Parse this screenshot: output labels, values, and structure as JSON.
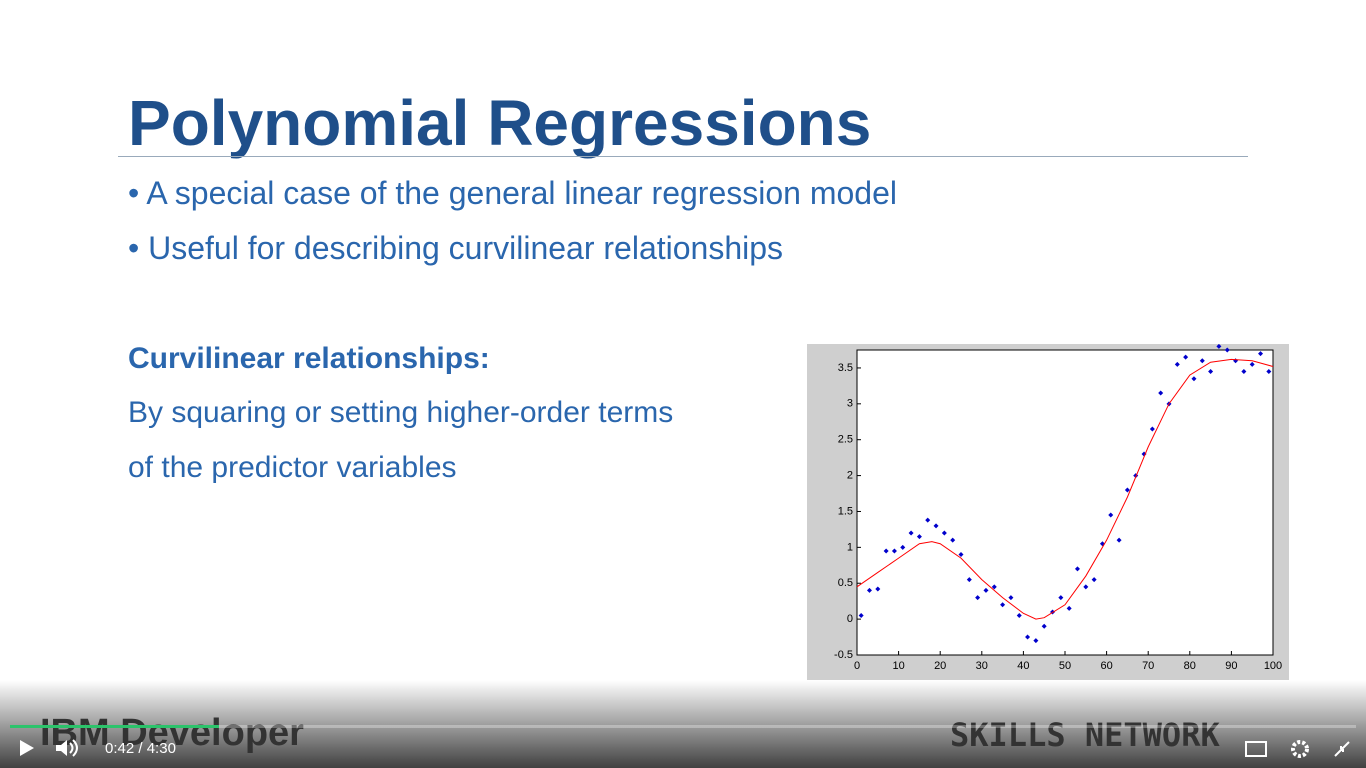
{
  "slide": {
    "title": "Polynomial Regressions",
    "bullets": [
      "A special case of the general linear regression model",
      "Useful for describing curvilinear relationships"
    ],
    "heading": "Curvilinear relationships:",
    "body": [
      "By squaring or setting higher-order terms",
      "of the predictor variables"
    ],
    "logo_left": "IBM Developer",
    "logo_right": "SKILLS NETWORK"
  },
  "player": {
    "current_time": "0:42",
    "separator": "/",
    "duration": "4:30"
  },
  "chart_data": {
    "type": "scatter",
    "xlim": [
      0,
      100
    ],
    "xticks": [
      0,
      10,
      20,
      30,
      40,
      50,
      60,
      70,
      80,
      90,
      100
    ],
    "ylim": [
      -0.5,
      3.75
    ],
    "yticks": [
      -0.5,
      0,
      0.5,
      1,
      1.5,
      2,
      2.5,
      3,
      3.5
    ],
    "series": [
      {
        "type": "scatter",
        "color": "#0000cc",
        "x": [
          1,
          3,
          5,
          7,
          9,
          11,
          13,
          15,
          17,
          19,
          21,
          23,
          25,
          27,
          29,
          31,
          33,
          35,
          37,
          39,
          41,
          43,
          45,
          47,
          49,
          51,
          53,
          55,
          57,
          59,
          61,
          63,
          65,
          67,
          69,
          71,
          73,
          75,
          77,
          79,
          81,
          83,
          85,
          87,
          89,
          91,
          93,
          95,
          97,
          99
        ],
        "values": [
          0.05,
          0.4,
          0.42,
          0.95,
          0.95,
          1.0,
          1.2,
          1.15,
          1.38,
          1.3,
          1.2,
          1.1,
          0.9,
          0.55,
          0.3,
          0.4,
          0.45,
          0.2,
          0.3,
          0.05,
          -0.25,
          -0.3,
          -0.1,
          0.1,
          0.3,
          0.15,
          0.7,
          0.45,
          0.55,
          1.05,
          1.45,
          1.1,
          1.8,
          2.0,
          2.3,
          2.65,
          3.15,
          3.0,
          3.55,
          3.65,
          3.35,
          3.6,
          3.45,
          3.8,
          3.75,
          3.6,
          3.45,
          3.55,
          3.7,
          3.45
        ]
      },
      {
        "type": "line",
        "color": "#ff0000",
        "x": [
          0,
          5,
          10,
          15,
          18,
          20,
          25,
          30,
          35,
          40,
          43,
          45,
          50,
          55,
          60,
          65,
          70,
          75,
          80,
          85,
          90,
          95,
          100
        ],
        "values": [
          0.45,
          0.65,
          0.85,
          1.05,
          1.08,
          1.05,
          0.85,
          0.55,
          0.3,
          0.08,
          0.0,
          0.02,
          0.2,
          0.6,
          1.1,
          1.7,
          2.4,
          3.0,
          3.4,
          3.58,
          3.62,
          3.6,
          3.52
        ]
      }
    ]
  }
}
